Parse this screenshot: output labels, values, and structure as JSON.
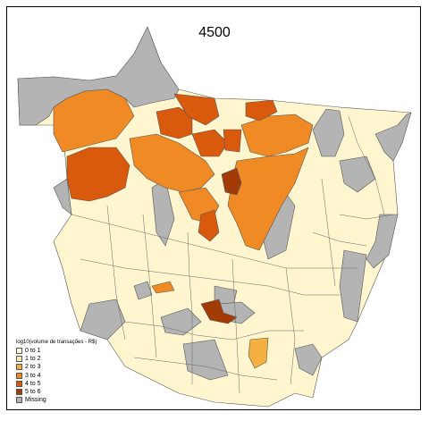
{
  "map": {
    "title": "4500"
  },
  "legend": {
    "title": "log10(volume de transações - R$)",
    "items": [
      {
        "label": "0 to 1",
        "color": "#FFF6CF"
      },
      {
        "label": "1 to 2",
        "color": "#FDEBB6"
      },
      {
        "label": "2 to 3",
        "color": "#F4B040"
      },
      {
        "label": "3 to 4",
        "color": "#F08A24"
      },
      {
        "label": "4 to 5",
        "color": "#D95A0C"
      },
      {
        "label": "5 to 6",
        "color": "#A23B05"
      },
      {
        "label": "Missing",
        "color": "#B4B4B4"
      }
    ]
  },
  "colors": {
    "border": "#555555",
    "background": "#FFFFFF"
  }
}
